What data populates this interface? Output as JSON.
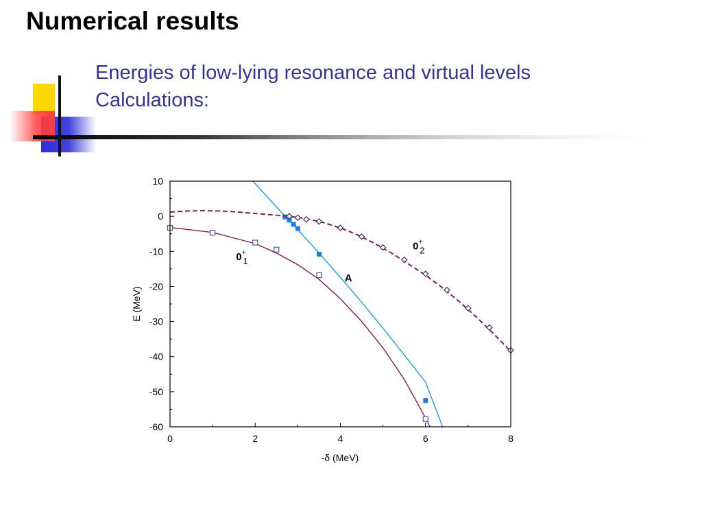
{
  "slide": {
    "title": "Numerical results",
    "subtitle_lines": [
      "Energies of low-lying resonance and virtual levels",
      "Calculations:"
    ]
  },
  "colors": {
    "title": "#000000",
    "subtitle": "#33339a",
    "accent_yellow": "#ffd700",
    "accent_red": "#ff3b3b",
    "accent_blue": "#2d2dd8",
    "curve_maroon": "#8b1a4a",
    "curve_cyan": "#1e9be0",
    "marker_square": "#4a5aa8",
    "marker_filled": "#1a7fe6",
    "marker_diamond": "#3b2a7a"
  },
  "chart_data": {
    "type": "line",
    "xlabel": "-δ  (MeV)",
    "ylabel": "E (MeV)",
    "xlim": [
      0,
      8
    ],
    "ylim": [
      -60,
      10
    ],
    "xticks": [
      0,
      2,
      4,
      6,
      8
    ],
    "yticks": [
      10,
      0,
      -10,
      -20,
      -30,
      -40,
      -50,
      -60
    ],
    "grid": false,
    "annotations": [
      {
        "main": "0",
        "sup": "+",
        "sub": "1",
        "x": 1.55,
        "y": -12.5
      },
      {
        "main": "0",
        "sup": "+",
        "sub": "2",
        "x": 5.7,
        "y": -9.5
      },
      {
        "main": "A",
        "x": 4.1,
        "y": -18.5
      }
    ],
    "series": [
      {
        "curve_x": [
          0,
          1,
          2,
          2.5,
          3,
          3.5,
          4,
          4.5,
          5,
          5.5,
          6,
          6.1
        ],
        "curve_y": [
          -3.2,
          -4.6,
          -7.8,
          -10.5,
          -13.8,
          -18.0,
          -23.5,
          -30.0,
          -37.5,
          -46.5,
          -57.5,
          -60
        ],
        "points_x": [
          0,
          1,
          2,
          2.5,
          3.5,
          6
        ],
        "points_y": [
          -3.3,
          -4.7,
          -7.5,
          -9.5,
          -16.8,
          -57.8
        ],
        "marker": "open-square",
        "line_style": "solid",
        "color": "#8b1a4a",
        "marker_color": "#4a5aa8"
      },
      {
        "curve_x": [
          1.95,
          2.3,
          2.7,
          3.0,
          3.5,
          4.0,
          4.5,
          5.0,
          5.5,
          6.0,
          6.4
        ],
        "curve_y": [
          10,
          5.3,
          0.0,
          -3.8,
          -10.5,
          -17.4,
          -24.5,
          -31.9,
          -39.5,
          -47.3,
          -60
        ],
        "points_x": [
          2.7,
          2.8,
          2.9,
          3.0,
          3.5,
          6
        ],
        "points_y": [
          -0.2,
          -1.1,
          -2.3,
          -3.5,
          -10.8,
          -52.5
        ],
        "marker": "filled-square",
        "line_style": "solid",
        "color": "#1e9be0",
        "marker_color": "#1a7fe6"
      },
      {
        "curve_x": [
          0,
          0.4,
          0.8,
          1.2,
          1.6,
          2.0,
          2.4,
          2.8,
          3.2,
          3.6,
          4.0,
          4.4,
          4.8,
          5.2,
          5.6,
          6.0,
          6.4,
          6.8,
          7.2,
          7.6,
          8.0
        ],
        "curve_y": [
          1.2,
          1.5,
          1.6,
          1.5,
          1.2,
          0.8,
          0.4,
          0.0,
          -0.7,
          -1.8,
          -3.3,
          -5.3,
          -7.7,
          -10.5,
          -13.6,
          -16.8,
          -20.4,
          -24.4,
          -28.8,
          -33.5,
          -38.5
        ],
        "points_x": [
          2.8,
          3.0,
          3.2,
          3.5,
          4.0,
          4.5,
          5.0,
          5.5,
          6.0,
          6.5,
          7.0,
          7.5,
          8.0
        ],
        "points_y": [
          0.0,
          -0.4,
          -0.9,
          -1.5,
          -3.3,
          -5.8,
          -8.9,
          -12.4,
          -16.4,
          -21.0,
          -26.2,
          -31.7,
          -38.2
        ],
        "marker": "open-diamond",
        "line_style": "dashed",
        "color": "#8b1a4a",
        "marker_color": "#3b2a7a"
      }
    ]
  }
}
